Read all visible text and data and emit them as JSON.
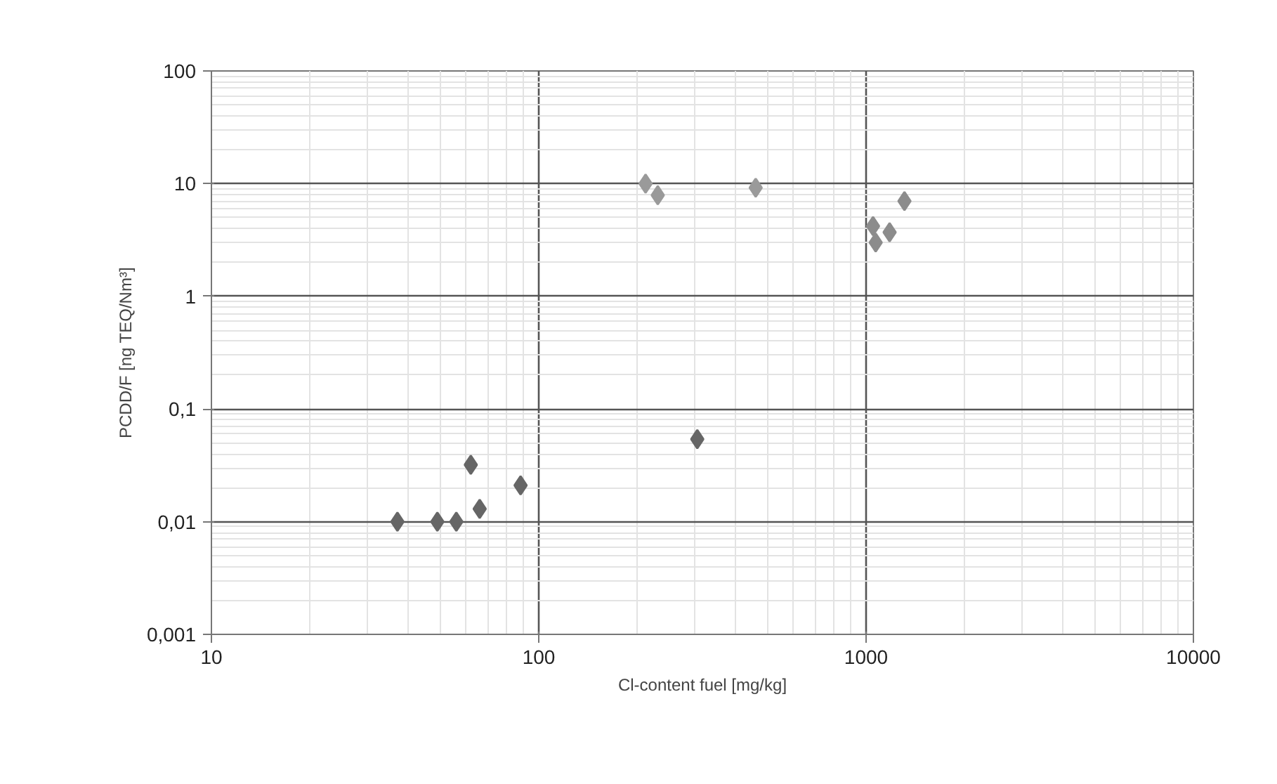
{
  "chart_data": {
    "type": "scatter",
    "xlabel": "Cl-content fuel [mg/kg]",
    "ylabel": "PCDD/F [ng TEQ/Nm³]",
    "log": "xy",
    "xlim": [
      10,
      10000
    ],
    "ylim": [
      0.001,
      100
    ],
    "xticks": [
      10,
      100,
      1000,
      10000
    ],
    "yticks": [
      {
        "value": 0.001,
        "label": "0,001"
      },
      {
        "value": 0.01,
        "label": "0,01"
      },
      {
        "value": 0.1,
        "label": "0,1"
      },
      1,
      10,
      100
    ],
    "grid": true,
    "marker": "diamond",
    "series": [
      {
        "color": "#666666",
        "x": [
          37,
          49,
          56,
          62,
          66,
          88,
          305
        ],
        "values": [
          0.01,
          0.01,
          0.01,
          0.032,
          0.013,
          0.021,
          0.054
        ]
      },
      {
        "color": "#9a9a9a",
        "x": [
          212,
          231,
          460
        ],
        "values": [
          10,
          7.9,
          9.2
        ]
      },
      {
        "color": "#8c8c8c",
        "x": [
          1050,
          1070,
          1180,
          1310
        ],
        "values": [
          4.2,
          3.0,
          3.7,
          7.0
        ]
      }
    ]
  }
}
